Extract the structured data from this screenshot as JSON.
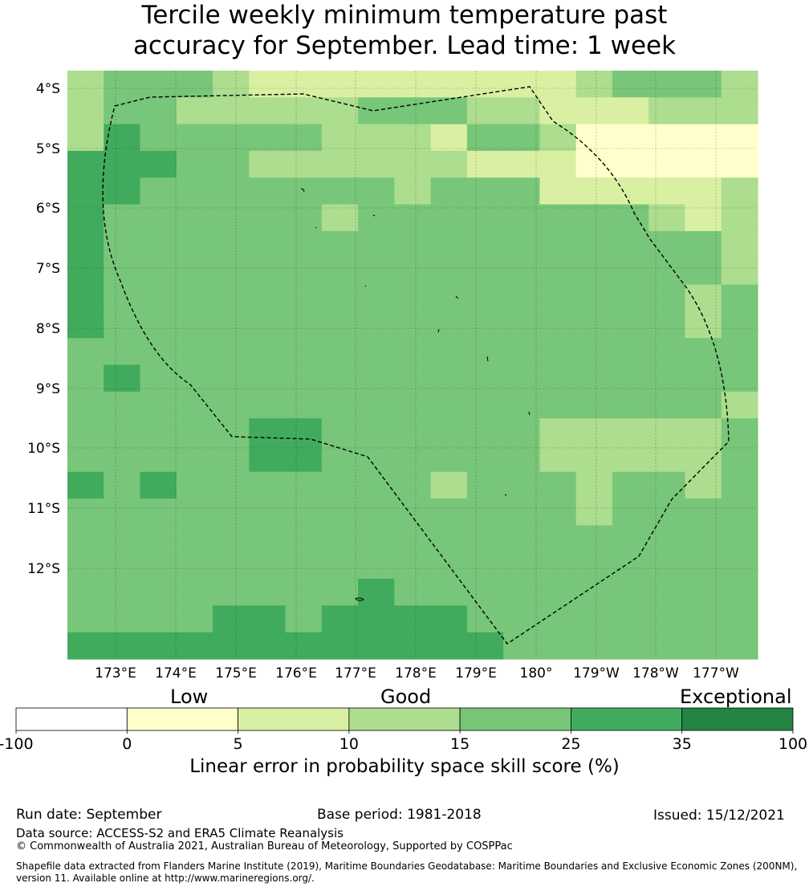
{
  "title": {
    "line1": "Tercile weekly minimum temperature past",
    "line2": "accuracy for September. Lead time: 1 week"
  },
  "map": {
    "lat_labels": [
      "4°S",
      "5°S",
      "6°S",
      "7°S",
      "8°S",
      "9°S",
      "10°S",
      "11°S",
      "12°S"
    ],
    "lon_labels": [
      "173°E",
      "174°E",
      "175°E",
      "176°E",
      "177°E",
      "178°E",
      "179°E",
      "180°",
      "179°W",
      "178°W",
      "177°W"
    ],
    "colors": [
      "#ffffff",
      "#ffffcc",
      "#d9f0a3",
      "#addd8e",
      "#78c679",
      "#41ab5d",
      "#238443"
    ],
    "grid": [
      "3444322222222234443",
      "3443333344433222333",
      "3544444333244311111",
      "5554433333322211111",
      "5544444443444222223",
      "5444444344444444323",
      "5444444444444444443",
      "5444444444444444443",
      "5444444444444444434",
      "5444444444444444434",
      "4444444444444444444",
      "4544444444444444444",
      "4444444444444444443",
      "4444455444444333334",
      "4444455444444333334",
      "5454444444344434434",
      "4444444444444434444",
      "4444444444444444444",
      "4444444444444444444",
      "4444444454444444444",
      "4444554555544444444",
      "5555555555554444444"
    ]
  },
  "legend": {
    "categories": [
      "Low",
      "Good",
      "Exceptional"
    ],
    "ticks": [
      "-100",
      "0",
      "5",
      "10",
      "15",
      "25",
      "35",
      "100"
    ],
    "label": "Linear error in probability space skill score (%)"
  },
  "footer": {
    "run_date": "Run date: September",
    "base_period": "Base period: 1981-2018",
    "issued": "Issued: 15/12/2021",
    "data_source": "Data source: ACCESS-S2 and ERA5 Climate Reanalysis",
    "copyright": "© Commonwealth of Australia 2021, Australian Bureau of Meteorology, Supported by COSPPac",
    "shapefile": "Shapefile data extracted from Flanders Marine Institute (2019), Maritime Boundaries Geodatabase: Maritime Boundaries and Exclusive Economic Zones (200NM), version 11. Available online at http://www.marineregions.org/."
  }
}
